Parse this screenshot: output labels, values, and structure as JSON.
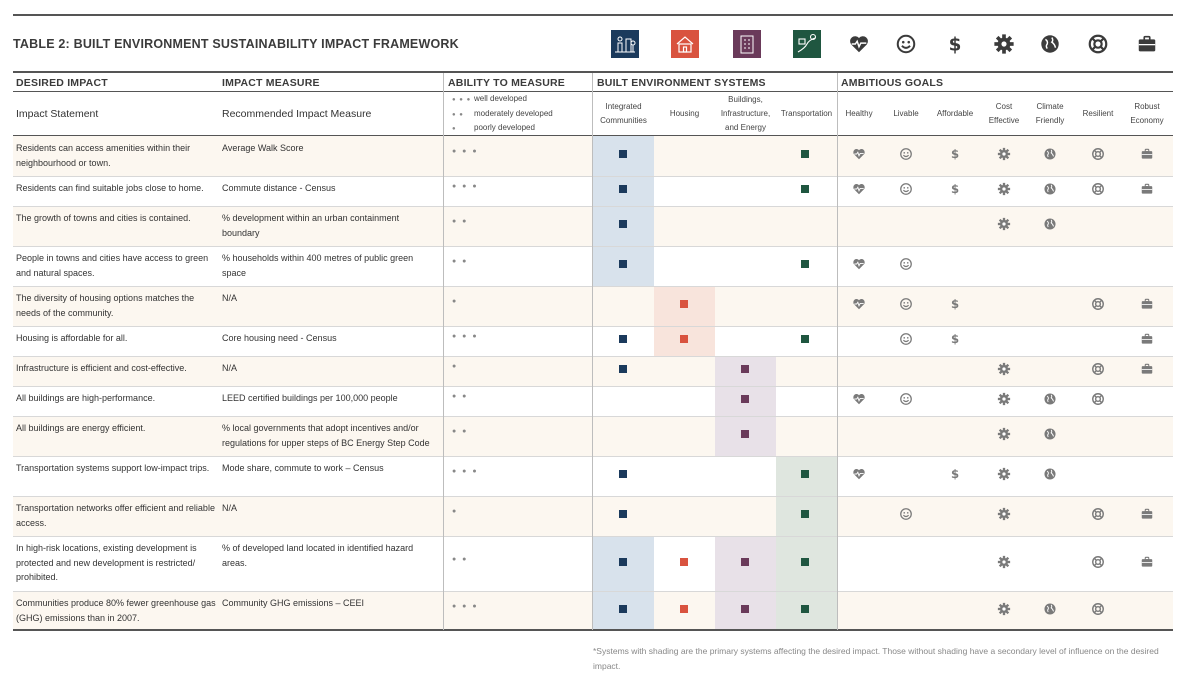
{
  "title": "TABLE 2: BUILT ENVIRONMENT SUSTAINABILITY IMPACT FRAMEWORK",
  "header_icons": {
    "systems": [
      "communities-icon",
      "housing-icon",
      "buildings-icon",
      "transportation-icon"
    ],
    "goals": [
      "heart-icon",
      "smiley-icon",
      "dollar-icon",
      "gear-icon",
      "globe-icon",
      "lifebuoy-icon",
      "briefcase-icon"
    ]
  },
  "colors": {
    "integrated_communities": "#1b3a5c",
    "housing": "#d9533f",
    "buildings": "#6a3a5a",
    "transportation": "#1f5640",
    "goal_icon": "#7a7a7a"
  },
  "headers": {
    "desired_impact": "DESIRED IMPACT",
    "impact_measure": "IMPACT MEASURE",
    "ability": "ABILITY TO MEASURE",
    "systems": "BUILT ENVIRONMENT SYSTEMS",
    "goals": "AMBITIOUS GOALS"
  },
  "subheaders": {
    "statement": "Impact Statement",
    "measure": "Recommended Impact Measure",
    "legend": [
      {
        "dots": "● ● ●",
        "label": "well developed"
      },
      {
        "dots": "● ●",
        "label": "moderately developed"
      },
      {
        "dots": "●",
        "label": "poorly developed"
      }
    ],
    "systems": [
      {
        "line1": "Integrated",
        "line2": "Communities",
        "line3": ""
      },
      {
        "line1": "Housing",
        "line2": "",
        "line3": ""
      },
      {
        "line1": "Buildings,",
        "line2": "Infrastructure,",
        "line3": "and Energy"
      },
      {
        "line1": "Transportation",
        "line2": "",
        "line3": ""
      }
    ],
    "goals": [
      {
        "line1": "Healthy",
        "line2": ""
      },
      {
        "line1": "Livable",
        "line2": ""
      },
      {
        "line1": "Affordable",
        "line2": ""
      },
      {
        "line1": "Cost",
        "line2": "Effective"
      },
      {
        "line1": "Climate",
        "line2": "Friendly"
      },
      {
        "line1": "Resilient",
        "line2": ""
      },
      {
        "line1": "Robust",
        "line2": "Economy"
      }
    ]
  },
  "rows": [
    {
      "statement": "Residents can access amenities within their neighbourhood or town.",
      "measure": "Average Walk Score",
      "ability": "● ● ●",
      "systems": [
        1,
        0,
        0,
        1
      ],
      "shaded": [
        1,
        0,
        0,
        0
      ],
      "goals": [
        1,
        1,
        1,
        1,
        1,
        1,
        1
      ]
    },
    {
      "statement": "Residents can find suitable jobs close to home.",
      "measure": "Commute distance - Census",
      "ability": "● ● ●",
      "systems": [
        1,
        0,
        0,
        1
      ],
      "shaded": [
        1,
        0,
        0,
        0
      ],
      "goals": [
        1,
        1,
        1,
        1,
        1,
        1,
        1
      ]
    },
    {
      "statement": "The growth of towns and cities is contained.",
      "measure": "% development within an urban containment boundary",
      "ability": "● ●",
      "systems": [
        1,
        0,
        0,
        0
      ],
      "shaded": [
        1,
        0,
        0,
        0
      ],
      "goals": [
        0,
        0,
        0,
        1,
        1,
        0,
        0
      ]
    },
    {
      "statement": "People in towns and cities have access to green and natural spaces.",
      "measure": "% households within 400 metres of public green space",
      "ability": "● ●",
      "systems": [
        1,
        0,
        0,
        1
      ],
      "shaded": [
        1,
        0,
        0,
        0
      ],
      "goals": [
        1,
        1,
        0,
        0,
        0,
        0,
        0
      ]
    },
    {
      "statement": "The diversity of housing options matches the needs of the community.",
      "measure": "N/A",
      "ability": "●",
      "systems": [
        0,
        1,
        0,
        0
      ],
      "shaded": [
        0,
        1,
        0,
        0
      ],
      "goals": [
        1,
        1,
        1,
        0,
        0,
        1,
        1
      ]
    },
    {
      "statement": "Housing is affordable for all.",
      "measure": "Core housing need - Census",
      "ability": "● ● ●",
      "systems": [
        1,
        1,
        0,
        1
      ],
      "shaded": [
        0,
        1,
        0,
        0
      ],
      "goals": [
        0,
        1,
        1,
        0,
        0,
        0,
        1
      ]
    },
    {
      "statement": "Infrastructure is efficient and cost-effective.",
      "measure": "N/A",
      "ability": "●",
      "systems": [
        1,
        0,
        1,
        0
      ],
      "shaded": [
        0,
        0,
        1,
        0
      ],
      "goals": [
        0,
        0,
        0,
        1,
        0,
        1,
        1
      ]
    },
    {
      "statement": "All buildings are high-performance.",
      "measure": "LEED certified buildings per 100,000 people",
      "ability": "● ●",
      "systems": [
        0,
        0,
        1,
        0
      ],
      "shaded": [
        0,
        0,
        1,
        0
      ],
      "goals": [
        1,
        1,
        0,
        1,
        1,
        1,
        0
      ]
    },
    {
      "statement": "All buildings are energy efficient.",
      "measure": "% local governments that adopt incentives and/or regulations for upper steps of BC Energy Step Code",
      "ability": "● ●",
      "systems": [
        0,
        0,
        1,
        0
      ],
      "shaded": [
        0,
        0,
        1,
        0
      ],
      "goals": [
        0,
        0,
        0,
        1,
        1,
        0,
        0
      ]
    },
    {
      "statement": "Transportation systems support low-impact trips.",
      "measure": "Mode share, commute to work – Census",
      "ability": "● ● ●",
      "systems": [
        1,
        0,
        0,
        1
      ],
      "shaded": [
        0,
        0,
        0,
        1
      ],
      "goals": [
        1,
        0,
        1,
        1,
        1,
        0,
        0
      ]
    },
    {
      "statement": "Transportation networks offer efficient and reliable access.",
      "measure": "N/A",
      "ability": "●",
      "systems": [
        1,
        0,
        0,
        1
      ],
      "shaded": [
        0,
        0,
        0,
        1
      ],
      "goals": [
        0,
        1,
        0,
        1,
        0,
        1,
        1
      ]
    },
    {
      "statement": "In high-risk locations, existing development is protected and new development is restricted/ prohibited.",
      "measure": "% of developed land located in identified hazard areas.",
      "ability": "● ●",
      "systems": [
        1,
        1,
        1,
        1
      ],
      "shaded": [
        1,
        0,
        1,
        1
      ],
      "goals": [
        0,
        0,
        0,
        1,
        0,
        1,
        1
      ]
    },
    {
      "statement": "Communities produce 80% fewer greenhouse gas (GHG) emissions than in 2007.",
      "measure": "Community GHG emissions – CEEI",
      "ability": "● ● ●",
      "systems": [
        1,
        1,
        1,
        1
      ],
      "shaded": [
        1,
        0,
        1,
        1
      ],
      "goals": [
        0,
        0,
        0,
        1,
        1,
        1,
        0
      ]
    }
  ],
  "footnote": "*Systems with shading are the primary systems affecting the desired impact. Those without shading have a secondary level of influence on the desired impact."
}
